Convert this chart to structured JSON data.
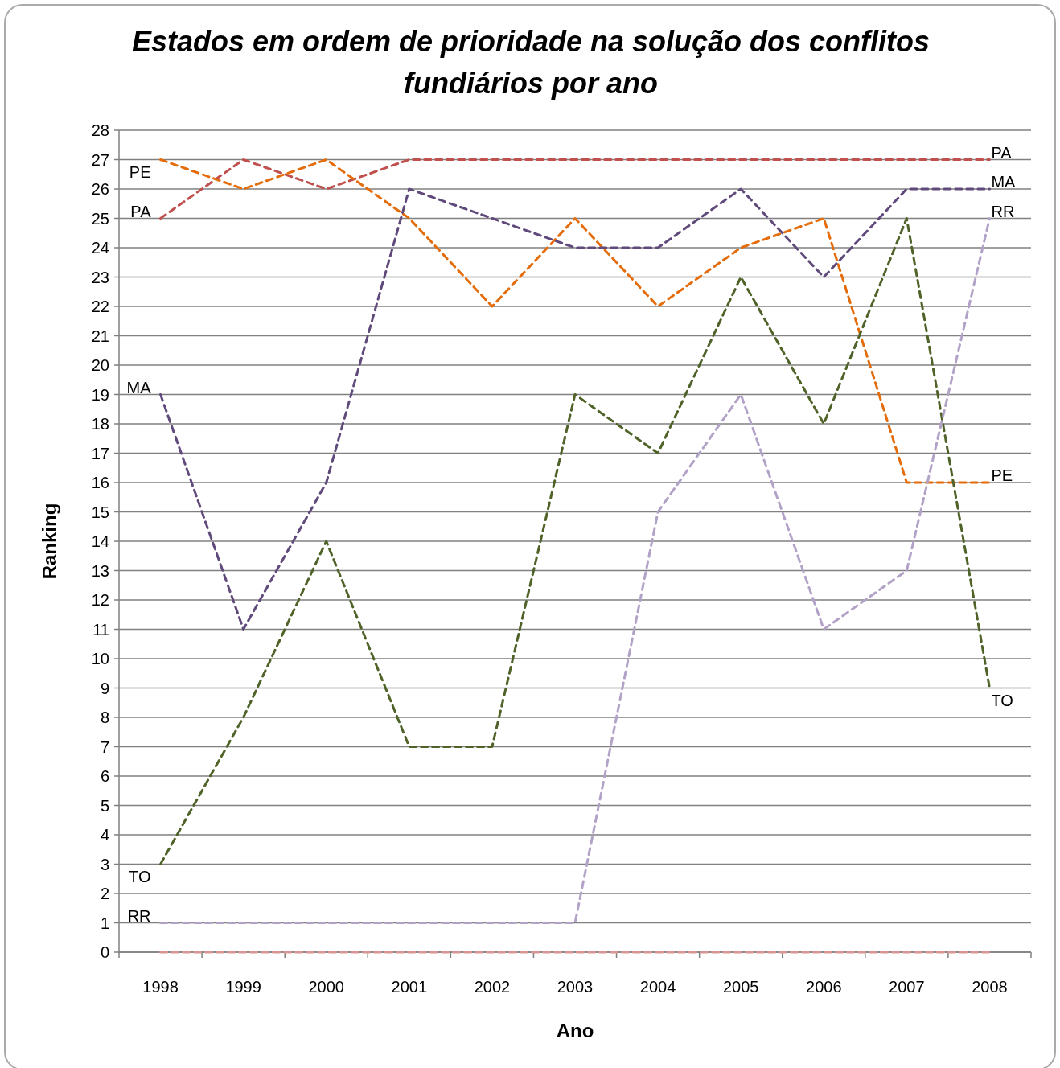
{
  "chart_data": {
    "type": "line",
    "title": "Estados em ordem de prioridade na solução dos conflitos fundiários por ano",
    "xlabel": "Ano",
    "ylabel": "Ranking",
    "categories": [
      "1998",
      "1999",
      "2000",
      "2001",
      "2002",
      "2003",
      "2004",
      "2005",
      "2006",
      "2007",
      "2008"
    ],
    "series": [
      {
        "name": "PA",
        "color": "#c0504d",
        "values": [
          25,
          27,
          26,
          27,
          27,
          27,
          27,
          27,
          27,
          27,
          27
        ]
      },
      {
        "name": "PE",
        "color": "#e46c0a",
        "values": [
          27,
          26,
          27,
          25,
          22,
          25,
          22,
          24,
          25,
          16,
          16
        ]
      },
      {
        "name": "MA",
        "color": "#604a7b",
        "values": [
          19,
          11,
          16,
          26,
          25,
          24,
          24,
          26,
          23,
          26,
          26
        ]
      },
      {
        "name": "TO",
        "color": "#4f6228",
        "values": [
          3,
          8,
          14,
          7,
          7,
          19,
          17,
          23,
          18,
          25,
          9
        ]
      },
      {
        "name": "RR",
        "color": "#b3a2c7",
        "values": [
          1,
          1,
          1,
          1,
          1,
          1,
          15,
          19,
          11,
          13,
          25
        ]
      },
      {
        "color": "#d99694",
        "values": [
          0,
          0,
          0,
          0,
          0,
          0,
          0,
          0,
          0,
          0,
          0
        ]
      }
    ],
    "ylim": [
      0,
      28
    ],
    "yticks": [
      0,
      1,
      2,
      3,
      4,
      5,
      6,
      7,
      8,
      9,
      10,
      11,
      12,
      13,
      14,
      15,
      16,
      17,
      18,
      19,
      20,
      21,
      22,
      23,
      24,
      25,
      26,
      27,
      28
    ],
    "grid": "y",
    "marker": "none",
    "line_style": "dashed"
  }
}
